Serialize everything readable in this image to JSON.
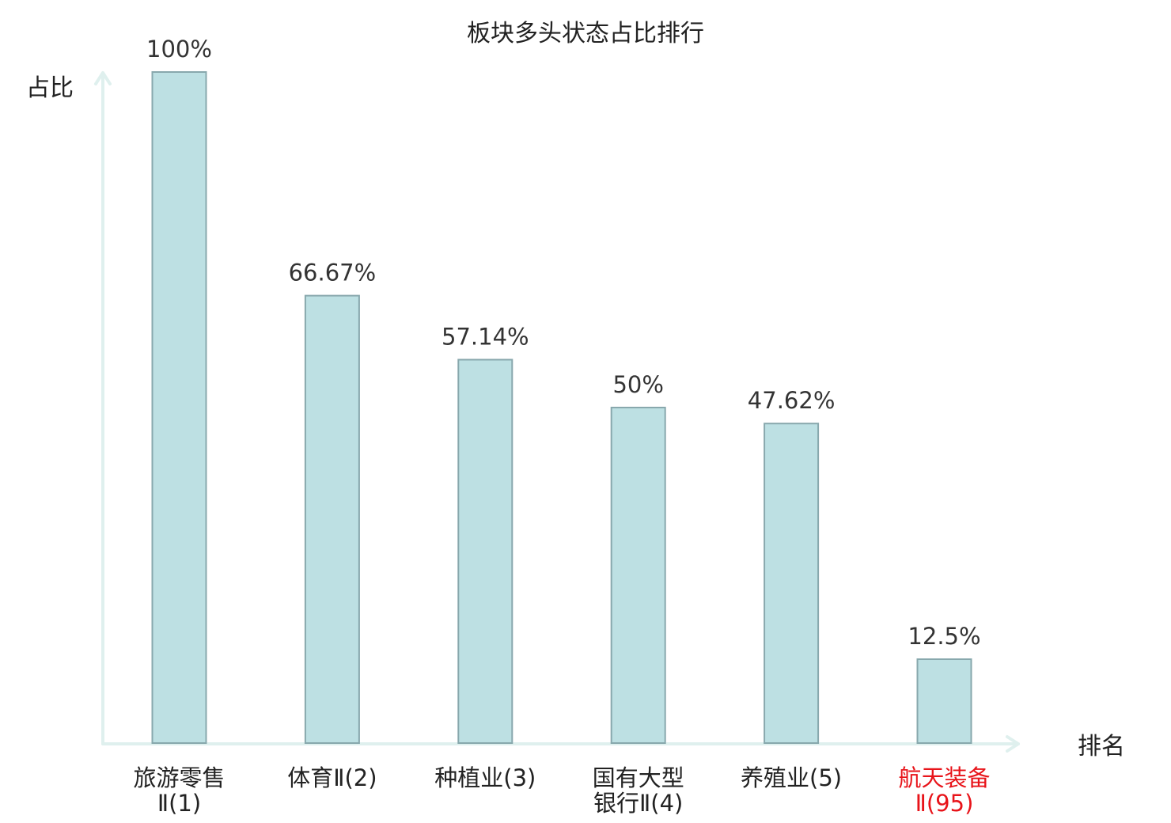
{
  "chart_data": {
    "type": "bar",
    "title": "板块多头状态占比排行",
    "ylabel": "占比",
    "xlabel": "排名",
    "ylim": [
      0,
      100
    ],
    "grid": false,
    "categories": [
      [
        "旅游零售",
        "Ⅱ(1)"
      ],
      [
        "体育Ⅱ(2)"
      ],
      [
        "种植业(3)"
      ],
      [
        "国有大型",
        "银行Ⅱ(4)"
      ],
      [
        "养殖业(5)"
      ],
      [
        "航天装备",
        "Ⅱ(95)"
      ]
    ],
    "values": [
      100,
      66.67,
      57.14,
      50,
      47.62,
      12.5
    ],
    "value_labels": [
      "100%",
      "66.67%",
      "57.14%",
      "50%",
      "47.62%",
      "12.5%"
    ],
    "highlight_index": 5,
    "colors": {
      "bar_fill": "#bde0e3",
      "bar_stroke": "#88a8ad",
      "axis": "#dff0ee",
      "highlight_text": "#e8141a"
    }
  }
}
